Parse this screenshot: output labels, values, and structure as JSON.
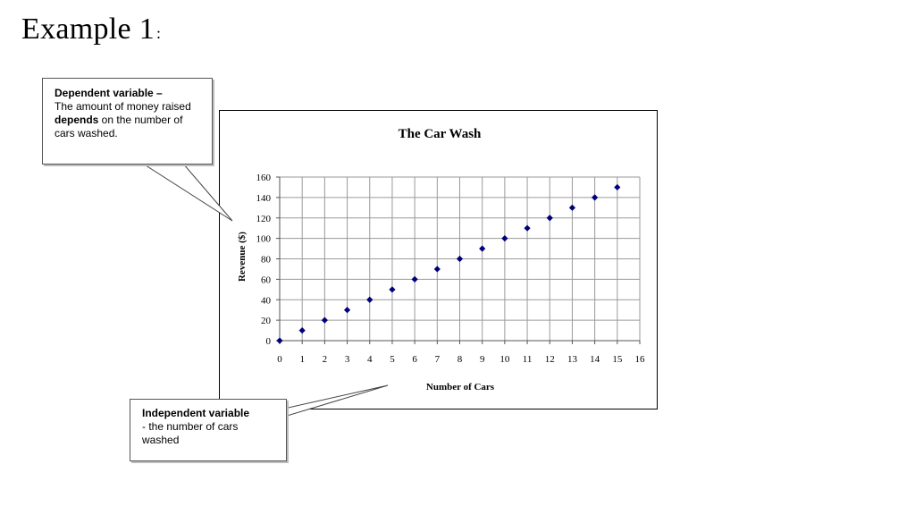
{
  "slide": {
    "title": "Example 1",
    "title_suffix": ":"
  },
  "dependent_callout": {
    "heading": "Dependent variable –",
    "text_before": "The amount of money raised ",
    "emphasis": "depends",
    "text_after": " on the number of cars washed."
  },
  "independent_callout": {
    "heading": "Independent variable",
    "text": "- the number of cars washed"
  },
  "chart_data": {
    "type": "scatter",
    "title": "The Car Wash",
    "xlabel": "Number of Cars",
    "ylabel": "Revenue ($)",
    "xlim": [
      0,
      16
    ],
    "ylim": [
      0,
      160
    ],
    "x_ticks": [
      0,
      1,
      2,
      3,
      4,
      5,
      6,
      7,
      8,
      9,
      10,
      11,
      12,
      13,
      14,
      15,
      16
    ],
    "y_ticks": [
      0,
      20,
      40,
      60,
      80,
      100,
      120,
      140,
      160
    ],
    "grid": true,
    "legend": "none",
    "marker": "diamond",
    "color": "#00007a",
    "series": [
      {
        "x": [
          0,
          1,
          2,
          3,
          4,
          5,
          6,
          7,
          8,
          9,
          10,
          11,
          12,
          13,
          14,
          15
        ],
        "y": [
          0,
          10,
          20,
          30,
          40,
          50,
          60,
          70,
          80,
          90,
          100,
          110,
          120,
          130,
          140,
          150
        ]
      }
    ]
  }
}
